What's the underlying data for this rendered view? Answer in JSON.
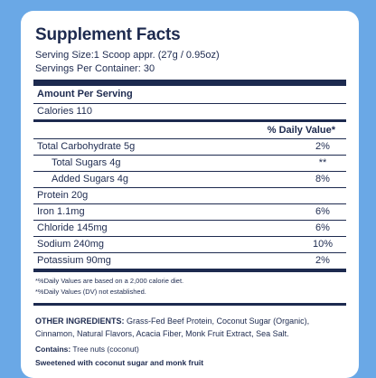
{
  "title": "Supplement Facts",
  "serving_size": "Serving Size:1 Scoop appr. (27g / 0.95oz)",
  "servings_per_container": "Servings Per Container: 30",
  "amount_per_serving": "Amount Per Serving",
  "calories": "Calories 110",
  "daily_value_header": "% Daily Value*",
  "nutrients": [
    {
      "name": "Total Carbohydrate 5g",
      "dv": "2%",
      "indent": false
    },
    {
      "name": "Total Sugars 4g",
      "dv": "**",
      "indent": true
    },
    {
      "name": "Added Sugars 4g",
      "dv": "8%",
      "indent": true
    },
    {
      "name": "Protein 20g",
      "dv": "",
      "indent": false
    },
    {
      "name": "Iron 1.1mg",
      "dv": "6%",
      "indent": false
    },
    {
      "name": "Chloride 145mg",
      "dv": "6%",
      "indent": false
    },
    {
      "name": "Sodium 240mg",
      "dv": "10%",
      "indent": false
    },
    {
      "name": "Potassium 90mg",
      "dv": "2%",
      "indent": false
    }
  ],
  "footnote_1": "*%Daily Values are based on a 2,000 calorie diet.",
  "footnote_2": "*%Daily Values (DV) not established.",
  "ingredients_label": "OTHER INGREDIENTS:",
  "ingredients_text": " Grass-Fed Beef Protein, Coconut Sugar (Organic), Cinnamon, Natural Flavors, Acacia Fiber, Monk Fruit Extract, Sea Salt.",
  "contains_label": "Contains:",
  "contains_text": " Tree nuts (coconut)",
  "sweetened": "Sweetened with coconut sugar and monk fruit"
}
